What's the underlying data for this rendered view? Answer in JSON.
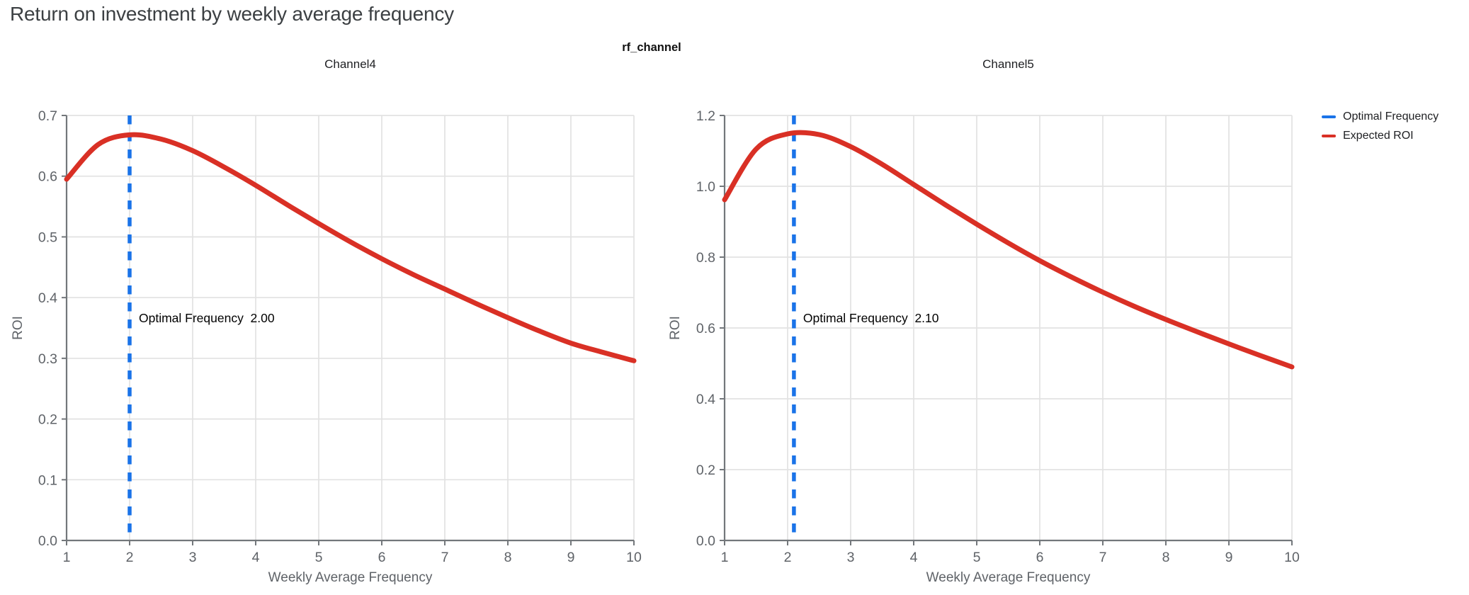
{
  "page_title": "Return on investment by weekly average frequency",
  "facet_title": "rf_channel",
  "legend": {
    "items": [
      {
        "label": "Optimal Frequency",
        "color": "#1a73e8"
      },
      {
        "label": "Expected ROI",
        "color": "#d93025"
      }
    ]
  },
  "colors": {
    "roi_curve": "#d93025",
    "optimal_line": "#1a73e8",
    "gridline": "#e3e3e3",
    "axis_line": "#73777b",
    "tick_label": "#5f6368"
  },
  "chart_data": [
    {
      "type": "line",
      "title": "Channel4",
      "xlabel": "Weekly Average Frequency",
      "ylabel": "ROI",
      "xlim": [
        1,
        10
      ],
      "ylim": [
        0,
        0.7
      ],
      "xticks": [
        1,
        2,
        3,
        4,
        5,
        6,
        7,
        8,
        9,
        10
      ],
      "yticks": [
        0.0,
        0.1,
        0.2,
        0.3,
        0.4,
        0.5,
        0.6,
        0.7
      ],
      "grid": true,
      "legend_position": "right-top",
      "optimal_frequency": 2.0,
      "annotation": "Optimal Frequency  2.00",
      "series": [
        {
          "name": "Expected ROI",
          "x": [
            1,
            1.5,
            2,
            2.5,
            3,
            3.5,
            4,
            4.5,
            5,
            5.5,
            6,
            6.5,
            7,
            7.5,
            8,
            8.5,
            9,
            9.5,
            10
          ],
          "y": [
            0.595,
            0.652,
            0.668,
            0.661,
            0.642,
            0.615,
            0.585,
            0.553,
            0.522,
            0.492,
            0.464,
            0.438,
            0.414,
            0.39,
            0.367,
            0.345,
            0.325,
            0.31,
            0.296
          ]
        }
      ]
    },
    {
      "type": "line",
      "title": "Channel5",
      "xlabel": "Weekly Average Frequency",
      "ylabel": "ROI",
      "xlim": [
        1,
        10
      ],
      "ylim": [
        0,
        1.2
      ],
      "xticks": [
        1,
        2,
        3,
        4,
        5,
        6,
        7,
        8,
        9,
        10
      ],
      "yticks": [
        0.0,
        0.2,
        0.4,
        0.6,
        0.8,
        1.0,
        1.2
      ],
      "grid": true,
      "legend_position": "right-top",
      "optimal_frequency": 2.1,
      "annotation": "Optimal Frequency  2.10",
      "series": [
        {
          "name": "Expected ROI",
          "x": [
            1,
            1.5,
            2,
            2.5,
            3,
            3.5,
            4,
            4.5,
            5,
            5.5,
            6,
            6.5,
            7,
            7.5,
            8,
            8.5,
            9,
            9.5,
            10
          ],
          "y": [
            0.962,
            1.105,
            1.148,
            1.146,
            1.112,
            1.062,
            1.005,
            0.948,
            0.893,
            0.84,
            0.79,
            0.744,
            0.701,
            0.661,
            0.624,
            0.589,
            0.555,
            0.522,
            0.49
          ]
        }
      ]
    }
  ]
}
